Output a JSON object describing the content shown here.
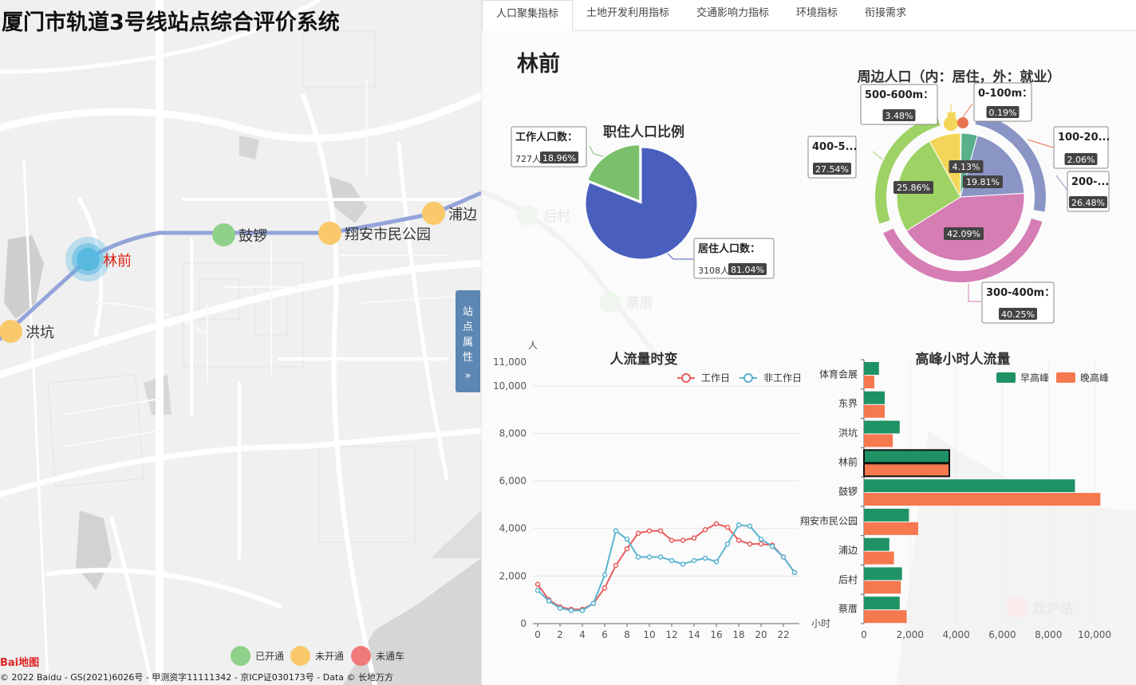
{
  "app": {
    "title": "厦门市轨道3号线站点综合评价系统"
  },
  "map": {
    "stations": [
      {
        "name": "洪坑",
        "status": "未开通"
      },
      {
        "name": "林前",
        "status": "selected"
      },
      {
        "name": "鼓锣",
        "status": "已开通"
      },
      {
        "name": "翔安市民公园",
        "status": "未开通"
      },
      {
        "name": "浦边",
        "status": "未开通"
      }
    ],
    "faded_labels": [
      "后村",
      "蔡厝",
      "双沪站"
    ],
    "legend": [
      {
        "label": "已开通",
        "color": "#8fd18a"
      },
      {
        "label": "未开通",
        "color": "#f9c96b"
      },
      {
        "label": "未通车",
        "color": "#f07a7a"
      }
    ],
    "logo_text": "Bai地图",
    "copyright": "© 2022 Baidu - GS(2021)6026号 - 甲测资字11111342 - 京ICP证030173号 - Data © 长地万方"
  },
  "side_tab": {
    "label_chars": [
      "站",
      "点",
      "属",
      "性"
    ],
    "arrow": "»"
  },
  "tabs": [
    "人口聚集指标",
    "土地开发利用指标",
    "交通影响力指标",
    "环境指标",
    "衔接需求"
  ],
  "active_tab": 0,
  "station": {
    "name": "林前"
  },
  "colors": {
    "line": "#8e9fd8",
    "selected": "#58b8e0"
  },
  "chart_data": [
    {
      "type": "pie",
      "title": "职住人口比例",
      "slices": [
        {
          "label": "居住人口数",
          "count": 3108,
          "count_text": "3108人",
          "percent": 81.04,
          "percent_text": "81.04%",
          "color": "#4a5fbd"
        },
        {
          "label": "工作人口数",
          "count": 727,
          "count_text": "727人",
          "percent": 18.96,
          "percent_text": "18.96%",
          "color": "#7ac06b"
        }
      ]
    },
    {
      "type": "pie",
      "title": "周边人口（内：居住，外：就业）",
      "inner": [
        {
          "label": "0-100m",
          "percent": 0.19,
          "color": "#e8734f"
        },
        {
          "label": "100-200m",
          "percent": 4.13,
          "color": "#5bb08c"
        },
        {
          "label": "200-300m",
          "percent": 19.81,
          "color": "#8a95c6"
        },
        {
          "label": "300-400m",
          "percent": 42.09,
          "color": "#d67db4"
        },
        {
          "label": "400-500m",
          "percent": 25.86,
          "color": "#9ed265"
        },
        {
          "label": "500-600m",
          "percent": 8.12,
          "color": "#f3d659"
        }
      ],
      "outer": [
        {
          "label": "0-100m",
          "label_text": "0-100m：",
          "percent": 0.19,
          "percent_text": "0.19%",
          "color": "#e8734f"
        },
        {
          "label": "100-200m",
          "label_text": "100-20...",
          "percent": 2.06,
          "percent_text": "2.06%",
          "color": "#5bb08c"
        },
        {
          "label": "200-300m",
          "label_text": "200-...",
          "percent": 26.48,
          "percent_text": "26.48%",
          "color": "#8a95c6"
        },
        {
          "label": "300-400m",
          "label_text": "300-400m：",
          "percent": 40.25,
          "percent_text": "40.25%",
          "color": "#d67db4"
        },
        {
          "label": "400-500m",
          "label_text": "400-5...",
          "percent": 27.54,
          "percent_text": "27.54%",
          "color": "#9ed265"
        },
        {
          "label": "500-600m",
          "label_text": "500-600m：",
          "percent": 3.48,
          "percent_text": "3.48%",
          "color": "#f3d659"
        }
      ],
      "inner_labels": [
        "4.13%",
        "19.81%",
        "42.09%",
        "25.86%"
      ]
    },
    {
      "type": "line",
      "title": "人流量时变",
      "ylabel": "人",
      "xlabel": "小时",
      "ylim": [
        0,
        11000
      ],
      "yticks": [
        0,
        2000,
        4000,
        6000,
        8000,
        10000,
        11000
      ],
      "ytick_labels": [
        "0",
        "2,000",
        "4,000",
        "6,000",
        "8,000",
        "10,000",
        "11,000"
      ],
      "x": [
        0,
        1,
        2,
        3,
        4,
        5,
        6,
        7,
        8,
        9,
        10,
        11,
        12,
        13,
        14,
        15,
        16,
        17,
        18,
        19,
        20,
        21,
        22,
        23
      ],
      "xtick_labels": [
        "0",
        "2",
        "4",
        "6",
        "8",
        "10",
        "12",
        "14",
        "16",
        "18",
        "20",
        "22"
      ],
      "series": [
        {
          "name": "工作日",
          "color": "#e85c5c",
          "values": [
            1650,
            1000,
            700,
            600,
            600,
            850,
            1500,
            2450,
            3150,
            3800,
            3900,
            3900,
            3500,
            3500,
            3600,
            3950,
            4200,
            4050,
            3500,
            3350,
            3350,
            3300,
            2800,
            2150
          ]
        },
        {
          "name": "非工作日",
          "color": "#5ab4d0",
          "values": [
            1400,
            950,
            650,
            550,
            550,
            850,
            2050,
            3900,
            3550,
            2800,
            2800,
            2800,
            2650,
            2500,
            2650,
            2750,
            2600,
            3350,
            4150,
            4100,
            3550,
            3250,
            2800,
            2150
          ]
        }
      ]
    },
    {
      "type": "bar",
      "orientation": "horizontal",
      "title": "高峰小时人流量",
      "categories": [
        "体育会展",
        "东界",
        "洪坑",
        "林前",
        "鼓锣",
        "翔安市民公园",
        "浦边",
        "后村",
        "蔡厝"
      ],
      "xlim": [
        0,
        11000
      ],
      "xticks": [
        0,
        2000,
        4000,
        6000,
        8000,
        10000
      ],
      "xtick_labels": [
        "0",
        "2,000",
        "4,000",
        "6,000",
        "8,000",
        "10,000"
      ],
      "highlight": "林前",
      "series": [
        {
          "name": "早高峰",
          "color": "#1f9265",
          "values": [
            650,
            900,
            1550,
            3700,
            9150,
            1950,
            1100,
            1650,
            1550
          ]
        },
        {
          "name": "晚高峰",
          "color": "#f6784e",
          "values": [
            450,
            900,
            1250,
            3700,
            10250,
            2350,
            1300,
            1600,
            1850
          ]
        }
      ]
    }
  ]
}
